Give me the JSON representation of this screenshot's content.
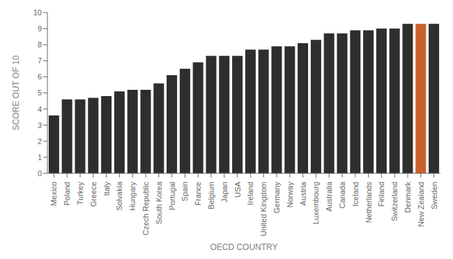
{
  "chart_data": {
    "type": "bar",
    "categories": [
      "Mexico",
      "Poland",
      "Turkey",
      "Greece",
      "Italy",
      "Solvakia",
      "Hungary",
      "Czech Republic",
      "South Korea",
      "Portugal",
      "Spain",
      "France",
      "Belgium",
      "Japan",
      "USA",
      "Ireland",
      "United Kingdom",
      "Germany",
      "Norway",
      "Austria",
      "Luxembourg",
      "Australia",
      "Canada",
      "Iceland",
      "Netherlands",
      "Finland",
      "Switzerland",
      "Denmark",
      "New Zealand",
      "Sweden"
    ],
    "values": [
      3.6,
      4.6,
      4.6,
      4.7,
      4.8,
      5.1,
      5.2,
      5.2,
      5.6,
      6.1,
      6.5,
      6.9,
      7.3,
      7.3,
      7.3,
      7.7,
      7.7,
      7.9,
      7.9,
      8.1,
      8.3,
      8.7,
      8.7,
      8.9,
      8.9,
      9.0,
      9.0,
      9.3,
      9.3,
      9.3
    ],
    "colors": [
      "#2e2e2e",
      "#2e2e2e",
      "#2e2e2e",
      "#2e2e2e",
      "#2e2e2e",
      "#2e2e2e",
      "#2e2e2e",
      "#2e2e2e",
      "#2e2e2e",
      "#2e2e2e",
      "#2e2e2e",
      "#2e2e2e",
      "#2e2e2e",
      "#2e2e2e",
      "#2e2e2e",
      "#2e2e2e",
      "#2e2e2e",
      "#2e2e2e",
      "#2e2e2e",
      "#2e2e2e",
      "#2e2e2e",
      "#2e2e2e",
      "#2e2e2e",
      "#2e2e2e",
      "#2e2e2e",
      "#2e2e2e",
      "#2e2e2e",
      "#2e2e2e",
      "#c8622a",
      "#2e2e2e"
    ],
    "xlabel": "OECD COUNTRY",
    "ylabel": "SCORE OUT OF 10",
    "ylim": [
      0,
      10
    ],
    "yticks": [
      0,
      1,
      2,
      3,
      4,
      5,
      6,
      7,
      8,
      9,
      10
    ],
    "grid": false
  }
}
